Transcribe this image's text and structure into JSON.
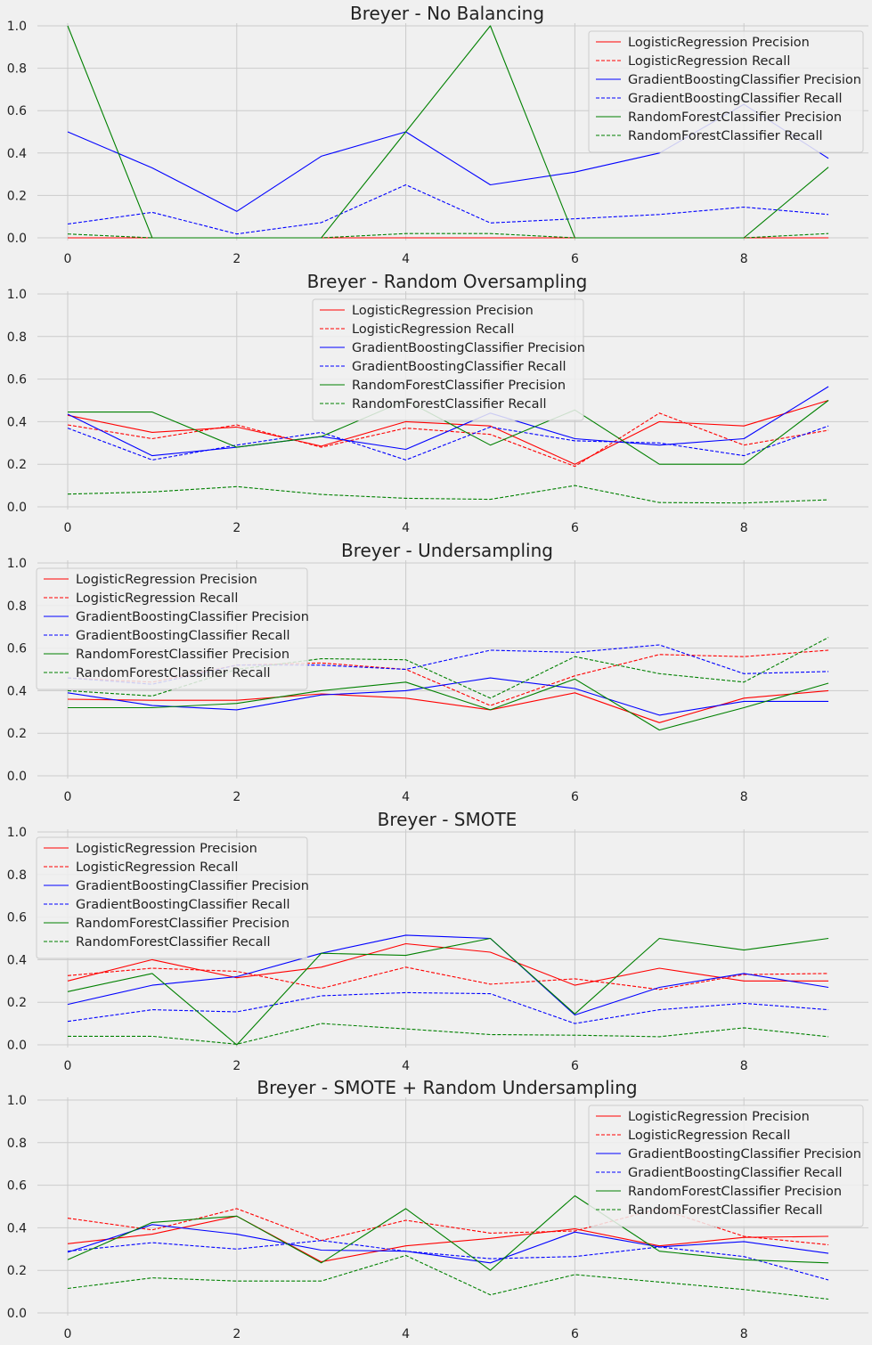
{
  "chart_data": [
    {
      "type": "line",
      "title": "Breyer - No Balancing",
      "legend_position": "top-right",
      "x": [
        0,
        1,
        2,
        3,
        4,
        5,
        6,
        7,
        8,
        9
      ],
      "xticks": [
        "0",
        "2",
        "4",
        "6",
        "8"
      ],
      "yticks": [
        "0.0",
        "0.2",
        "0.4",
        "0.6",
        "0.8",
        "1.0"
      ],
      "ylim": [
        0,
        1
      ],
      "grid": true,
      "series": [
        {
          "name": "LogisticRegression Precision",
          "color": "#ff0000",
          "style": "solid",
          "values": [
            0,
            0,
            0,
            0,
            0,
            0,
            0,
            0,
            0,
            0
          ]
        },
        {
          "name": "LogisticRegression Recall",
          "color": "#ff0000",
          "style": "dashed",
          "values": [
            0,
            0,
            0,
            0,
            0,
            0,
            0,
            0,
            0,
            0
          ]
        },
        {
          "name": "GradientBoostingClassifier Precision",
          "color": "#0000ff",
          "style": "solid",
          "values": [
            0.5,
            0.33,
            0.125,
            0.385,
            0.5,
            0.25,
            0.31,
            0.4,
            0.63,
            0.375
          ]
        },
        {
          "name": "GradientBoostingClassifier Recall",
          "color": "#0000ff",
          "style": "dashed",
          "values": [
            0.065,
            0.12,
            0.018,
            0.072,
            0.25,
            0.07,
            0.09,
            0.11,
            0.145,
            0.11
          ]
        },
        {
          "name": "RandomForestClassifier Precision",
          "color": "#008000",
          "style": "solid",
          "values": [
            1.0,
            0,
            0,
            0,
            0.5,
            1.0,
            0,
            0,
            0,
            0.333
          ]
        },
        {
          "name": "RandomForestClassifier Recall",
          "color": "#008000",
          "style": "dashed",
          "values": [
            0.018,
            0,
            0,
            0,
            0.02,
            0.02,
            0,
            0,
            0,
            0.02
          ]
        }
      ]
    },
    {
      "type": "line",
      "title": "Breyer - Random Oversampling",
      "legend_position": "upper-center",
      "x": [
        0,
        1,
        2,
        3,
        4,
        5,
        6,
        7,
        8,
        9
      ],
      "xticks": [
        "0",
        "2",
        "4",
        "6",
        "8"
      ],
      "yticks": [
        "0.0",
        "0.2",
        "0.4",
        "0.6",
        "0.8",
        "1.0"
      ],
      "ylim": [
        0,
        1
      ],
      "grid": true,
      "series": [
        {
          "name": "LogisticRegression Precision",
          "color": "#ff0000",
          "style": "solid",
          "values": [
            0.43,
            0.35,
            0.375,
            0.285,
            0.4,
            0.38,
            0.2,
            0.4,
            0.38,
            0.5
          ]
        },
        {
          "name": "LogisticRegression Recall",
          "color": "#ff0000",
          "style": "dashed",
          "values": [
            0.385,
            0.32,
            0.385,
            0.28,
            0.37,
            0.34,
            0.19,
            0.44,
            0.29,
            0.36
          ]
        },
        {
          "name": "GradientBoostingClassifier Precision",
          "color": "#0000ff",
          "style": "solid",
          "values": [
            0.435,
            0.24,
            0.28,
            0.33,
            0.27,
            0.44,
            0.32,
            0.29,
            0.32,
            0.565
          ]
        },
        {
          "name": "GradientBoostingClassifier Recall",
          "color": "#0000ff",
          "style": "dashed",
          "values": [
            0.37,
            0.22,
            0.29,
            0.35,
            0.22,
            0.375,
            0.31,
            0.3,
            0.24,
            0.38
          ]
        },
        {
          "name": "RandomForestClassifier Precision",
          "color": "#008000",
          "style": "solid",
          "values": [
            0.445,
            0.445,
            0.28,
            0.33,
            0.5,
            0.29,
            0.455,
            0.2,
            0.2,
            0.5
          ]
        },
        {
          "name": "RandomForestClassifier Recall",
          "color": "#008000",
          "style": "dashed",
          "values": [
            0.06,
            0.07,
            0.095,
            0.058,
            0.04,
            0.035,
            0.1,
            0.02,
            0.018,
            0.033
          ]
        }
      ]
    },
    {
      "type": "line",
      "title": "Breyer - Undersampling",
      "legend_position": "upper-left",
      "x": [
        0,
        1,
        2,
        3,
        4,
        5,
        6,
        7,
        8,
        9
      ],
      "xticks": [
        "0",
        "2",
        "4",
        "6",
        "8"
      ],
      "yticks": [
        "0.0",
        "0.2",
        "0.4",
        "0.6",
        "0.8",
        "1.0"
      ],
      "ylim": [
        0,
        1
      ],
      "grid": true,
      "series": [
        {
          "name": "LogisticRegression Precision",
          "color": "#ff0000",
          "style": "solid",
          "values": [
            0.36,
            0.355,
            0.355,
            0.385,
            0.365,
            0.31,
            0.39,
            0.25,
            0.365,
            0.4
          ]
        },
        {
          "name": "LogisticRegression Recall",
          "color": "#ff0000",
          "style": "dashed",
          "values": [
            0.46,
            0.44,
            0.52,
            0.53,
            0.5,
            0.33,
            0.47,
            0.57,
            0.56,
            0.59
          ]
        },
        {
          "name": "GradientBoostingClassifier Precision",
          "color": "#0000ff",
          "style": "solid",
          "values": [
            0.39,
            0.33,
            0.31,
            0.38,
            0.4,
            0.46,
            0.41,
            0.285,
            0.35,
            0.35
          ]
        },
        {
          "name": "GradientBoostingClassifier Recall",
          "color": "#0000ff",
          "style": "dashed",
          "values": [
            0.46,
            0.43,
            0.52,
            0.52,
            0.5,
            0.59,
            0.58,
            0.615,
            0.48,
            0.49
          ]
        },
        {
          "name": "RandomForestClassifier Precision",
          "color": "#008000",
          "style": "solid",
          "values": [
            0.32,
            0.32,
            0.34,
            0.4,
            0.44,
            0.31,
            0.455,
            0.215,
            0.32,
            0.435
          ]
        },
        {
          "name": "RandomForestClassifier Recall",
          "color": "#008000",
          "style": "dashed",
          "values": [
            0.4,
            0.375,
            0.5,
            0.55,
            0.545,
            0.365,
            0.56,
            0.48,
            0.44,
            0.65
          ]
        }
      ]
    },
    {
      "type": "line",
      "title": "Breyer - SMOTE",
      "legend_position": "upper-left",
      "x": [
        0,
        1,
        2,
        3,
        4,
        5,
        6,
        7,
        8,
        9
      ],
      "xticks": [
        "0",
        "2",
        "4",
        "6",
        "8"
      ],
      "yticks": [
        "0.0",
        "0.2",
        "0.4",
        "0.6",
        "0.8",
        "1.0"
      ],
      "ylim": [
        0,
        1
      ],
      "grid": true,
      "series": [
        {
          "name": "LogisticRegression Precision",
          "color": "#ff0000",
          "style": "solid",
          "values": [
            0.3,
            0.4,
            0.315,
            0.365,
            0.475,
            0.435,
            0.28,
            0.36,
            0.3,
            0.3
          ]
        },
        {
          "name": "LogisticRegression Recall",
          "color": "#ff0000",
          "style": "dashed",
          "values": [
            0.325,
            0.36,
            0.345,
            0.265,
            0.365,
            0.285,
            0.31,
            0.26,
            0.33,
            0.335
          ]
        },
        {
          "name": "GradientBoostingClassifier Precision",
          "color": "#0000ff",
          "style": "solid",
          "values": [
            0.19,
            0.28,
            0.32,
            0.43,
            0.515,
            0.5,
            0.14,
            0.27,
            0.335,
            0.27
          ]
        },
        {
          "name": "GradientBoostingClassifier Recall",
          "color": "#0000ff",
          "style": "dashed",
          "values": [
            0.11,
            0.165,
            0.155,
            0.23,
            0.245,
            0.24,
            0.1,
            0.165,
            0.195,
            0.165
          ]
        },
        {
          "name": "RandomForestClassifier Precision",
          "color": "#008000",
          "style": "solid",
          "values": [
            0.25,
            0.335,
            0,
            0.43,
            0.42,
            0.5,
            0.145,
            0.5,
            0.445,
            0.5
          ]
        },
        {
          "name": "RandomForestClassifier Recall",
          "color": "#008000",
          "style": "dashed",
          "values": [
            0.04,
            0.04,
            0.003,
            0.1,
            0.075,
            0.048,
            0.045,
            0.038,
            0.08,
            0.038
          ]
        }
      ]
    },
    {
      "type": "line",
      "title": "Breyer - SMOTE + Random Undersampling",
      "legend_position": "top-right",
      "x": [
        0,
        1,
        2,
        3,
        4,
        5,
        6,
        7,
        8,
        9
      ],
      "xticks": [
        "0",
        "2",
        "4",
        "6",
        "8"
      ],
      "yticks": [
        "0.0",
        "0.2",
        "0.4",
        "0.6",
        "0.8",
        "1.0"
      ],
      "ylim": [
        0,
        1
      ],
      "grid": true,
      "series": [
        {
          "name": "LogisticRegression Precision",
          "color": "#ff0000",
          "style": "solid",
          "values": [
            0.325,
            0.37,
            0.455,
            0.24,
            0.315,
            0.35,
            0.395,
            0.315,
            0.355,
            0.36
          ]
        },
        {
          "name": "LogisticRegression Recall",
          "color": "#ff0000",
          "style": "dashed",
          "values": [
            0.445,
            0.39,
            0.49,
            0.34,
            0.435,
            0.375,
            0.385,
            0.49,
            0.36,
            0.32
          ]
        },
        {
          "name": "GradientBoostingClassifier Precision",
          "color": "#0000ff",
          "style": "solid",
          "values": [
            0.285,
            0.415,
            0.37,
            0.295,
            0.29,
            0.235,
            0.38,
            0.31,
            0.335,
            0.28
          ]
        },
        {
          "name": "GradientBoostingClassifier Recall",
          "color": "#0000ff",
          "style": "dashed",
          "values": [
            0.29,
            0.33,
            0.3,
            0.34,
            0.29,
            0.255,
            0.265,
            0.31,
            0.265,
            0.155
          ]
        },
        {
          "name": "RandomForestClassifier Precision",
          "color": "#008000",
          "style": "solid",
          "values": [
            0.25,
            0.425,
            0.455,
            0.235,
            0.49,
            0.2,
            0.55,
            0.29,
            0.25,
            0.235
          ]
        },
        {
          "name": "RandomForestClassifier Recall",
          "color": "#008000",
          "style": "dashed",
          "values": [
            0.115,
            0.165,
            0.15,
            0.15,
            0.27,
            0.085,
            0.18,
            0.145,
            0.11,
            0.065
          ]
        }
      ]
    }
  ]
}
